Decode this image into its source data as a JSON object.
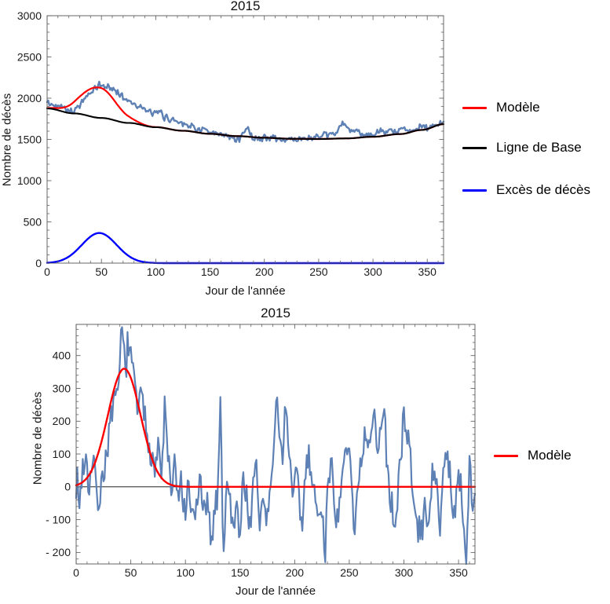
{
  "figure": {
    "background": "#ffffff"
  },
  "colors": {
    "observed_line": "#5E81B5",
    "model_line": "#FF0000",
    "baseline_line": "#000000",
    "excess_line": "#0000FF",
    "frame": "#555555"
  },
  "chart_data": [
    {
      "type": "line",
      "title": "2015",
      "xlabel": "Jour de l'année",
      "ylabel": "Nombre de décès",
      "xlim": [
        0,
        365
      ],
      "ylim": [
        0,
        3000
      ],
      "xticks": [
        0,
        50,
        100,
        150,
        200,
        250,
        300,
        350
      ],
      "minor_x": 10,
      "ytick_vals": [
        0,
        500,
        1000,
        1500,
        2000,
        2500,
        3000
      ],
      "ytick_labels": [
        "0",
        "500",
        "1000",
        "1500",
        "2000",
        "2500",
        "3000"
      ],
      "minor_y": 100,
      "grid": false,
      "frame": true,
      "zero_line": false,
      "legend": {
        "position": "right",
        "items": [
          {
            "label": "Modèle",
            "color": "#FF0000"
          },
          {
            "label": "Ligne de Base",
            "color": "#000000"
          },
          {
            "label": "Excès de décès",
            "color": "#0000FF"
          }
        ]
      },
      "series": [
        {
          "key": "deces-observes",
          "color": "#5E81B5",
          "width": 2.4,
          "noise": 50,
          "seed": 42,
          "anchors": [
            [
              0,
              1950
            ],
            [
              4,
              1915
            ],
            [
              8,
              1905
            ],
            [
              12,
              1930
            ],
            [
              16,
              1885
            ],
            [
              20,
              1855
            ],
            [
              24,
              1840
            ],
            [
              28,
              1890
            ],
            [
              32,
              1955
            ],
            [
              36,
              2010
            ],
            [
              40,
              2060
            ],
            [
              44,
              2105
            ],
            [
              48,
              2165
            ],
            [
              52,
              2140
            ],
            [
              56,
              2145
            ],
            [
              60,
              2105
            ],
            [
              64,
              2085
            ],
            [
              68,
              2040
            ],
            [
              72,
              1990
            ],
            [
              76,
              1960
            ],
            [
              80,
              1945
            ],
            [
              84,
              1905
            ],
            [
              88,
              1870
            ],
            [
              92,
              1845
            ],
            [
              96,
              1825
            ],
            [
              100,
              1805
            ],
            [
              104,
              1835
            ],
            [
              108,
              1770
            ],
            [
              112,
              1750
            ],
            [
              116,
              1735
            ],
            [
              120,
              1725
            ],
            [
              124,
              1705
            ],
            [
              128,
              1685
            ],
            [
              132,
              1660
            ],
            [
              136,
              1645
            ],
            [
              140,
              1610
            ],
            [
              144,
              1630
            ],
            [
              148,
              1580
            ],
            [
              152,
              1560
            ],
            [
              156,
              1565
            ],
            [
              160,
              1555
            ],
            [
              164,
              1545
            ],
            [
              168,
              1525
            ],
            [
              172,
              1515
            ],
            [
              176,
              1505
            ],
            [
              180,
              1555
            ],
            [
              184,
              1655
            ],
            [
              188,
              1545
            ],
            [
              192,
              1510
            ],
            [
              196,
              1505
            ],
            [
              200,
              1525
            ],
            [
              204,
              1515
            ],
            [
              208,
              1530
            ],
            [
              212,
              1505
            ],
            [
              216,
              1495
            ],
            [
              220,
              1485
            ],
            [
              224,
              1515
            ],
            [
              228,
              1505
            ],
            [
              232,
              1495
            ],
            [
              236,
              1520
            ],
            [
              240,
              1515
            ],
            [
              244,
              1510
            ],
            [
              248,
              1535
            ],
            [
              252,
              1525
            ],
            [
              256,
              1545
            ],
            [
              260,
              1555
            ],
            [
              264,
              1565
            ],
            [
              268,
              1620
            ],
            [
              272,
              1690
            ],
            [
              276,
              1650
            ],
            [
              280,
              1595
            ],
            [
              284,
              1605
            ],
            [
              288,
              1585
            ],
            [
              292,
              1565
            ],
            [
              296,
              1555
            ],
            [
              300,
              1550
            ],
            [
              304,
              1575
            ],
            [
              308,
              1595
            ],
            [
              312,
              1575
            ],
            [
              316,
              1615
            ],
            [
              320,
              1590
            ],
            [
              324,
              1600
            ],
            [
              328,
              1635
            ],
            [
              332,
              1625
            ],
            [
              336,
              1615
            ],
            [
              340,
              1625
            ],
            [
              344,
              1650
            ],
            [
              348,
              1655
            ],
            [
              352,
              1635
            ],
            [
              356,
              1665
            ],
            [
              360,
              1680
            ],
            [
              365,
              1700
            ]
          ]
        },
        {
          "key": "modele",
          "color": "#FF0000",
          "width": 2.2,
          "gauss": {
            "A": 368,
            "mu": 47,
            "sigma": 16
          },
          "anchors": [
            [
              0,
              1875
            ],
            [
              25,
              1815
            ],
            [
              50,
              1760
            ],
            [
              75,
              1700
            ],
            [
              100,
              1648
            ],
            [
              125,
              1605
            ],
            [
              150,
              1568
            ],
            [
              175,
              1540
            ],
            [
              200,
              1520
            ],
            [
              225,
              1508
            ],
            [
              250,
              1505
            ],
            [
              275,
              1512
            ],
            [
              300,
              1532
            ],
            [
              325,
              1565
            ],
            [
              345,
              1615
            ],
            [
              365,
              1685
            ]
          ]
        },
        {
          "key": "ligne-de-base",
          "color": "#000000",
          "width": 2.1,
          "anchors": [
            [
              0,
              1875
            ],
            [
              25,
              1815
            ],
            [
              50,
              1760
            ],
            [
              75,
              1700
            ],
            [
              100,
              1648
            ],
            [
              125,
              1605
            ],
            [
              150,
              1568
            ],
            [
              175,
              1540
            ],
            [
              200,
              1520
            ],
            [
              225,
              1508
            ],
            [
              250,
              1505
            ],
            [
              275,
              1512
            ],
            [
              300,
              1532
            ],
            [
              325,
              1565
            ],
            [
              345,
              1615
            ],
            [
              365,
              1685
            ]
          ]
        },
        {
          "key": "exces-de-deces",
          "color": "#0000FF",
          "width": 2.4,
          "gauss": {
            "A": 365,
            "mu": 48,
            "sigma": 16
          }
        }
      ]
    },
    {
      "type": "line",
      "title": "2015",
      "xlabel": "Jour de l'année",
      "ylabel": "Nombre de décès",
      "xlim": [
        0,
        365
      ],
      "ylim": [
        -235,
        495
      ],
      "xticks": [
        0,
        50,
        100,
        150,
        200,
        250,
        300,
        350
      ],
      "minor_x": 10,
      "ytick_vals": [
        -200,
        -100,
        0,
        100,
        200,
        300,
        400
      ],
      "ytick_labels": [
        "- 200",
        "- 100",
        "0",
        "100",
        "200",
        "300",
        "400"
      ],
      "minor_y": 20,
      "grid": false,
      "frame": true,
      "zero_line": true,
      "legend": {
        "position": "right",
        "items": [
          {
            "label": "Modèle",
            "color": "#FF0000"
          }
        ]
      },
      "series": [
        {
          "key": "exces-observe",
          "color": "#5E81B5",
          "width": 2.2,
          "noise": 70,
          "seed": 7,
          "anchors": [
            [
              0,
              30
            ],
            [
              3,
              -45
            ],
            [
              6,
              65
            ],
            [
              9,
              80
            ],
            [
              12,
              15
            ],
            [
              15,
              55
            ],
            [
              18,
              35
            ],
            [
              21,
              -55
            ],
            [
              24,
              20
            ],
            [
              27,
              95
            ],
            [
              30,
              150
            ],
            [
              33,
              225
            ],
            [
              36,
              240
            ],
            [
              39,
              330
            ],
            [
              42,
              460
            ],
            [
              45,
              395
            ],
            [
              48,
              425
            ],
            [
              51,
              360
            ],
            [
              54,
              305
            ],
            [
              57,
              235
            ],
            [
              60,
              265
            ],
            [
              63,
              200
            ],
            [
              66,
              145
            ],
            [
              69,
              120
            ],
            [
              72,
              60
            ],
            [
              75,
              115
            ],
            [
              78,
              35
            ],
            [
              81,
              230
            ],
            [
              84,
              105
            ],
            [
              87,
              -25
            ],
            [
              90,
              60
            ],
            [
              93,
              -45
            ],
            [
              96,
              15
            ],
            [
              99,
              -85
            ],
            [
              102,
              -30
            ],
            [
              105,
              -65
            ],
            [
              108,
              -105
            ],
            [
              111,
              -45
            ],
            [
              114,
              25
            ],
            [
              117,
              -95
            ],
            [
              120,
              -60
            ],
            [
              123,
              -165
            ],
            [
              126,
              -85
            ],
            [
              129,
              -35
            ],
            [
              132,
              240
            ],
            [
              135,
              -195
            ],
            [
              138,
              25
            ],
            [
              141,
              -55
            ],
            [
              144,
              -115
            ],
            [
              147,
              -40
            ],
            [
              150,
              -140
            ],
            [
              153,
              25
            ],
            [
              156,
              -35
            ],
            [
              159,
              -105
            ],
            [
              162,
              -20
            ],
            [
              165,
              55
            ],
            [
              168,
              -115
            ],
            [
              171,
              -35
            ],
            [
              174,
              -95
            ],
            [
              177,
              -40
            ],
            [
              180,
              65
            ],
            [
              183,
              255
            ],
            [
              186,
              175
            ],
            [
              189,
              105
            ],
            [
              192,
              245
            ],
            [
              195,
              115
            ],
            [
              198,
              -55
            ],
            [
              201,
              40
            ],
            [
              204,
              -35
            ],
            [
              207,
              -130
            ],
            [
              210,
              60
            ],
            [
              213,
              110
            ],
            [
              216,
              25
            ],
            [
              219,
              -45
            ],
            [
              222,
              -105
            ],
            [
              225,
              -55
            ],
            [
              228,
              -190
            ],
            [
              231,
              35
            ],
            [
              234,
              115
            ],
            [
              237,
              -75
            ],
            [
              240,
              -125
            ],
            [
              243,
              -20
            ],
            [
              246,
              105
            ],
            [
              249,
              130
            ],
            [
              252,
              45
            ],
            [
              255,
              -135
            ],
            [
              258,
              -30
            ],
            [
              261,
              45
            ],
            [
              264,
              150
            ],
            [
              267,
              95
            ],
            [
              270,
              160
            ],
            [
              273,
              210
            ],
            [
              276,
              100
            ],
            [
              279,
              180
            ],
            [
              282,
              240
            ],
            [
              285,
              60
            ],
            [
              288,
              -55
            ],
            [
              291,
              -105
            ],
            [
              294,
              -40
            ],
            [
              297,
              95
            ],
            [
              300,
              245
            ],
            [
              303,
              130
            ],
            [
              306,
              95
            ],
            [
              309,
              -60
            ],
            [
              312,
              -125
            ],
            [
              315,
              -150
            ],
            [
              318,
              -85
            ],
            [
              321,
              -100
            ],
            [
              324,
              -40
            ],
            [
              327,
              20
            ],
            [
              330,
              -25
            ],
            [
              333,
              -85
            ],
            [
              336,
              45
            ],
            [
              339,
              95
            ],
            [
              342,
              20
            ],
            [
              345,
              -65
            ],
            [
              348,
              -35
            ],
            [
              351,
              55
            ],
            [
              354,
              -125
            ],
            [
              357,
              -190
            ],
            [
              360,
              55
            ],
            [
              363,
              -95
            ],
            [
              365,
              -15
            ]
          ]
        },
        {
          "key": "modele",
          "color": "#FF0000",
          "width": 2.4,
          "gauss": {
            "A": 360,
            "mu": 44,
            "sigma": 15
          }
        }
      ]
    }
  ]
}
